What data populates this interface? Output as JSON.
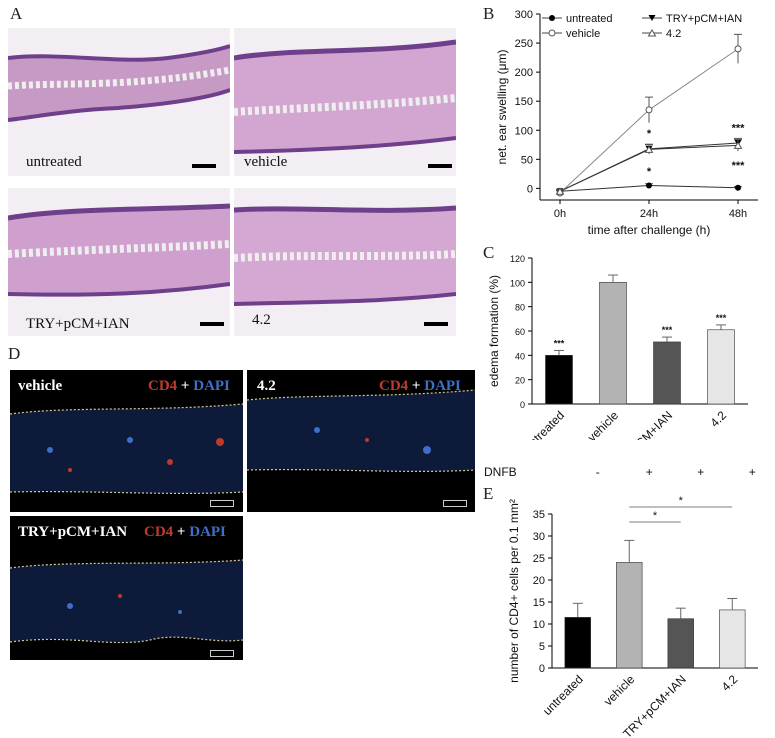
{
  "panel_letters": {
    "a": "A",
    "b": "B",
    "c": "C",
    "d": "D",
    "e": "E"
  },
  "panel_a": {
    "images": [
      {
        "label": "untreated"
      },
      {
        "label": "vehicle"
      },
      {
        "label": "TRY+pCM+IAN"
      },
      {
        "label": "4.2"
      }
    ]
  },
  "panel_d": {
    "images": [
      {
        "label": "vehicle",
        "stain_a": "CD4",
        "plus": "+",
        "stain_b": "DAPI"
      },
      {
        "label": "4.2",
        "stain_a": "CD4",
        "plus": "+",
        "stain_b": "DAPI"
      },
      {
        "label": "TRY+pCM+IAN",
        "stain_a": "CD4",
        "plus": "+",
        "stain_b": "DAPI"
      }
    ],
    "colors": {
      "cd4": "#c0392b",
      "dapi": "#3d6fc8",
      "tissue": "#0d1a3a",
      "outline": "#d8c890"
    }
  },
  "chart_data": [
    {
      "type": "line",
      "panel": "B",
      "xlabel": "time after challenge (h)",
      "ylabel": "net. ear swelling (μm)",
      "categories": [
        "0h",
        "24h",
        "48h"
      ],
      "ylim": [
        -20,
        300
      ],
      "yticks": [
        "0",
        "50",
        "100",
        "150",
        "200",
        "250",
        "300"
      ],
      "series": [
        {
          "name": "untreated",
          "values": [
            -5,
            5,
            1
          ],
          "err": [
            2,
            3,
            2
          ],
          "marker": "filled-circle"
        },
        {
          "name": "vehicle",
          "values": [
            -8,
            135,
            240
          ],
          "err": [
            4,
            22,
            25
          ],
          "marker": "open-circle"
        },
        {
          "name": "TRY+pCM+IAN",
          "values": [
            -5,
            68,
            78
          ],
          "err": [
            3,
            8,
            8
          ],
          "marker": "filled-triangle-down"
        },
        {
          "name": "4.2",
          "values": [
            -5,
            67,
            74
          ],
          "err": [
            3,
            8,
            10
          ],
          "marker": "open-triangle"
        }
      ],
      "annotations": [
        {
          "x": "24h",
          "y": 95,
          "text": "*"
        },
        {
          "x": "24h",
          "y": 30,
          "text": "*"
        },
        {
          "x": "48h",
          "y": 105,
          "text": "***"
        },
        {
          "x": "48h",
          "y": 40,
          "text": "***"
        }
      ],
      "legend": "top"
    },
    {
      "type": "bar",
      "panel": "C",
      "ylabel": "edema formation (%)",
      "categories": [
        "untreated",
        "vehicle",
        "TRY+pCM+IAN",
        "4.2"
      ],
      "values": [
        40,
        100,
        51,
        61
      ],
      "err": [
        4,
        6,
        4,
        4
      ],
      "ylim": [
        0,
        120
      ],
      "yticks": [
        "0",
        "20",
        "40",
        "60",
        "80",
        "100",
        "120"
      ],
      "significance": [
        "***",
        "",
        "***",
        "***"
      ],
      "colors": [
        "#000000",
        "#b3b3b3",
        "#555555",
        "#e6e6e6"
      ]
    },
    {
      "type": "bar",
      "panel": "E",
      "ylabel": "number of CD4+ cells per 0.1 mm²",
      "categories": [
        "untreated",
        "vehicle",
        "TRY+pCM+IAN",
        "4.2"
      ],
      "values": [
        11.5,
        24,
        11.2,
        13.2
      ],
      "err": [
        3.2,
        5,
        2.4,
        2.6
      ],
      "ylim": [
        0,
        35
      ],
      "yticks": [
        "0",
        "5",
        "10",
        "15",
        "20",
        "25",
        "30",
        "35"
      ],
      "dnfb_label": "DNFB",
      "dnfb": [
        "-",
        "+",
        "+",
        "+"
      ],
      "comparisons": [
        {
          "from": "vehicle",
          "to": "TRY+pCM+IAN",
          "text": "*"
        },
        {
          "from": "vehicle",
          "to": "4.2",
          "text": "*"
        }
      ],
      "colors": [
        "#000000",
        "#b3b3b3",
        "#555555",
        "#e6e6e6"
      ]
    }
  ]
}
